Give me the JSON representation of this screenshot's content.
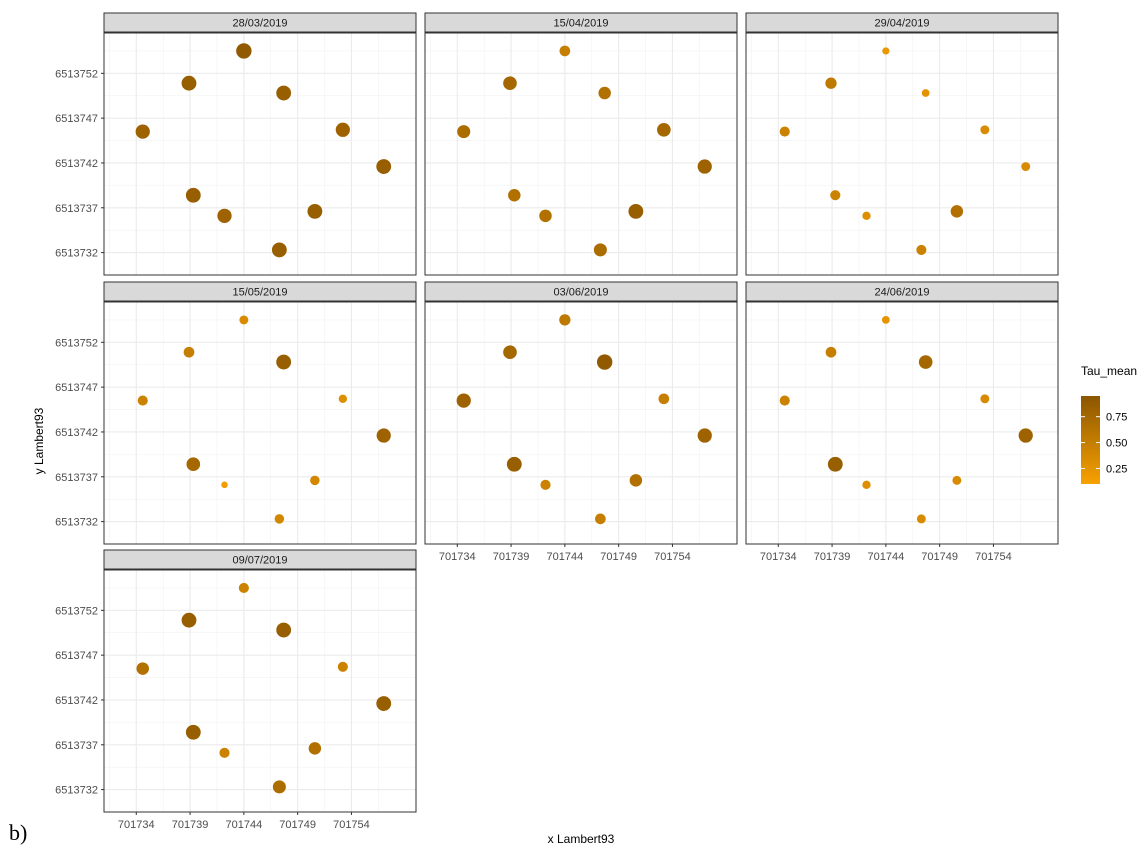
{
  "figure_label": "b)",
  "chart_data": {
    "type": "scatter",
    "xlabel": "x Lambert93",
    "ylabel": "y Lambert93",
    "x_ticks": [
      701734,
      701739,
      701744,
      701749,
      701754
    ],
    "y_ticks": [
      6513732,
      6513737,
      6513742,
      6513747,
      6513752
    ],
    "xlim": [
      701731,
      701760
    ],
    "ylim": [
      6513729.5,
      6513756.5
    ],
    "grid": true,
    "legend": {
      "title": "Tau_mean",
      "position": "right",
      "type": "colorbar",
      "ticks": [
        0.75,
        0.5,
        0.25
      ],
      "tick_labels": [
        "0.75",
        "0.50",
        "0.25"
      ],
      "range": [
        0.1,
        0.95
      ],
      "color_low": "#F8A100",
      "color_high": "#8B5600"
    },
    "points": [
      {
        "x": 701744.0,
        "y": 6513754.5
      },
      {
        "x": 701747.7,
        "y": 6513749.8
      },
      {
        "x": 701753.2,
        "y": 6513745.7
      },
      {
        "x": 701757.0,
        "y": 6513741.6
      },
      {
        "x": 701750.6,
        "y": 6513736.6
      },
      {
        "x": 701747.3,
        "y": 6513732.3
      },
      {
        "x": 701742.2,
        "y": 6513736.1
      },
      {
        "x": 701739.3,
        "y": 6513738.4
      },
      {
        "x": 701734.6,
        "y": 6513745.5
      },
      {
        "x": 701738.9,
        "y": 6513750.9
      }
    ],
    "panels": [
      {
        "date": "28/03/2019",
        "tau": [
          0.9,
          0.85,
          0.8,
          0.85,
          0.85,
          0.85,
          0.8,
          0.85,
          0.8,
          0.85
        ]
      },
      {
        "date": "15/04/2019",
        "tau": [
          0.5,
          0.65,
          0.75,
          0.8,
          0.85,
          0.7,
          0.65,
          0.65,
          0.7,
          0.75
        ]
      },
      {
        "date": "29/04/2019",
        "tau": [
          0.2,
          0.25,
          0.35,
          0.35,
          0.65,
          0.45,
          0.3,
          0.45,
          0.45,
          0.55
        ]
      },
      {
        "date": "15/05/2019",
        "tau": [
          0.35,
          0.85,
          0.3,
          0.8,
          0.4,
          0.4,
          0.15,
          0.75,
          0.45,
          0.5
        ]
      },
      {
        "date": "03/06/2019",
        "tau": [
          0.55,
          0.9,
          0.5,
          0.8,
          0.65,
          0.5,
          0.45,
          0.85,
          0.8,
          0.75
        ]
      },
      {
        "date": "24/06/2019",
        "tau": [
          0.25,
          0.75,
          0.35,
          0.8,
          0.35,
          0.35,
          0.3,
          0.85,
          0.45,
          0.5
        ]
      },
      {
        "date": "09/07/2019",
        "tau": [
          0.45,
          0.85,
          0.45,
          0.85,
          0.65,
          0.7,
          0.45,
          0.85,
          0.65,
          0.85
        ]
      }
    ]
  }
}
